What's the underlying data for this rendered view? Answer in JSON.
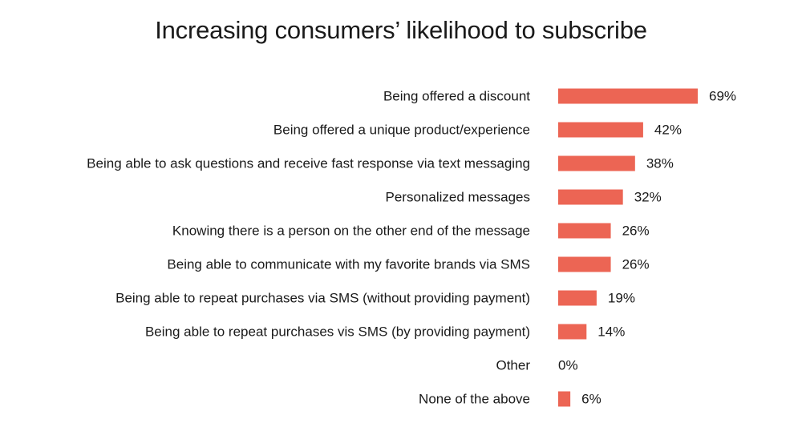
{
  "chart_data": {
    "type": "bar",
    "orientation": "horizontal",
    "title": "Increasing consumers’ likelihood to subscribe",
    "categories": [
      "Being offered a discount",
      "Being offered a unique product/experience",
      "Being able to ask questions and receive fast response via text messaging",
      "Personalized messages",
      "Knowing there is a person on the other end of the message",
      "Being able to communicate with my favorite brands via SMS",
      "Being able to repeat purchases via SMS (without providing payment)",
      "Being able to repeat purchases vis SMS (by providing payment)",
      "Other",
      "None of the above"
    ],
    "values": [
      69,
      42,
      38,
      32,
      26,
      26,
      19,
      14,
      0,
      6
    ],
    "value_labels": [
      "69%",
      "42%",
      "38%",
      "32%",
      "26%",
      "26%",
      "19%",
      "14%",
      "0%",
      "6%"
    ],
    "xlim": [
      0,
      69
    ],
    "grid": false,
    "colors": {
      "bar": "#ec6554",
      "text": "#1a1a1a"
    }
  }
}
